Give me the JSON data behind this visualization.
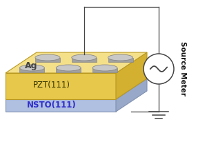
{
  "bg_color": "#ffffff",
  "pzt_color": "#f5e08a",
  "pzt_front_color": "#e8c84a",
  "pzt_side_color": "#d4b030",
  "pzt_edge_color": "#b89820",
  "nsto_color": "#c8d8f0",
  "nsto_front_color": "#b0c0e0",
  "nsto_side_color": "#98a8c8",
  "nsto_edge_color": "#8090b0",
  "ag_color": "#c8c8c8",
  "ag_side_color": "#a0a0a0",
  "ag_edge_color": "#888888",
  "wire_color": "#444444",
  "circuit_color": "#444444",
  "label_pzt": "PZT(111)",
  "label_nsto": "NSTO(111)",
  "label_ag": "Ag",
  "label_source": "Source Meter",
  "pzt_label_color": "#333300",
  "nsto_label_color": "#3030cc",
  "ag_label_color": "#444444"
}
